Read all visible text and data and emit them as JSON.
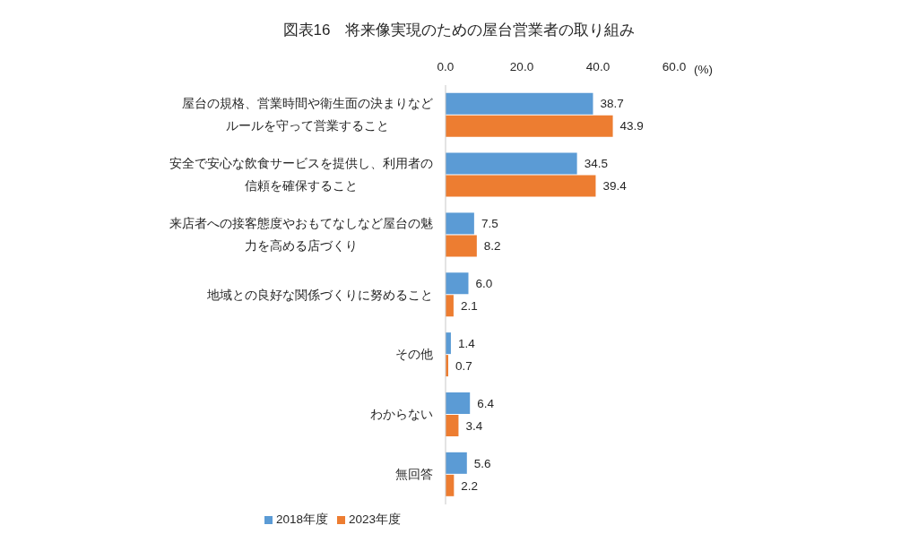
{
  "chart_data": {
    "type": "bar",
    "orientation": "horizontal",
    "title": "図表16　将来像実現のための屋台営業者の取り組み",
    "xlabel": "(%)",
    "categories": [
      "屋台の規格、営業時間や衛生面の決まりなどルールを守って営業すること",
      "安全で安心な飲食サービスを提供し、利用者の信頼を確保すること",
      "来店者への接客態度やおもてなしなど屋台の魅力を高める店づくり",
      "地域との良好な関係づくりに努めること",
      "その他",
      "わからない",
      "無回答"
    ],
    "series": [
      {
        "name": "2018年度",
        "color": "#5b9bd5",
        "values": [
          38.7,
          34.5,
          7.5,
          6.0,
          1.4,
          6.4,
          5.6
        ],
        "value_labels": [
          "38.7",
          "34.5",
          "7.5",
          "6.0",
          "1.4",
          "6.4",
          "5.6"
        ]
      },
      {
        "name": "2023年度",
        "color": "#ed7d31",
        "values": [
          43.9,
          39.4,
          8.2,
          2.1,
          0.7,
          3.4,
          2.2
        ],
        "value_labels": [
          "43.9",
          "39.4",
          "8.2",
          "2.1",
          "0.7",
          "3.4",
          "2.2"
        ]
      }
    ],
    "xlim": [
      0,
      60
    ],
    "xticks": [
      {
        "value": 0,
        "label": "0.0"
      },
      {
        "value": 20,
        "label": "20.0"
      },
      {
        "value": 40,
        "label": "40.0"
      },
      {
        "value": 60,
        "label": "60.0"
      }
    ],
    "legend": "bottom"
  }
}
